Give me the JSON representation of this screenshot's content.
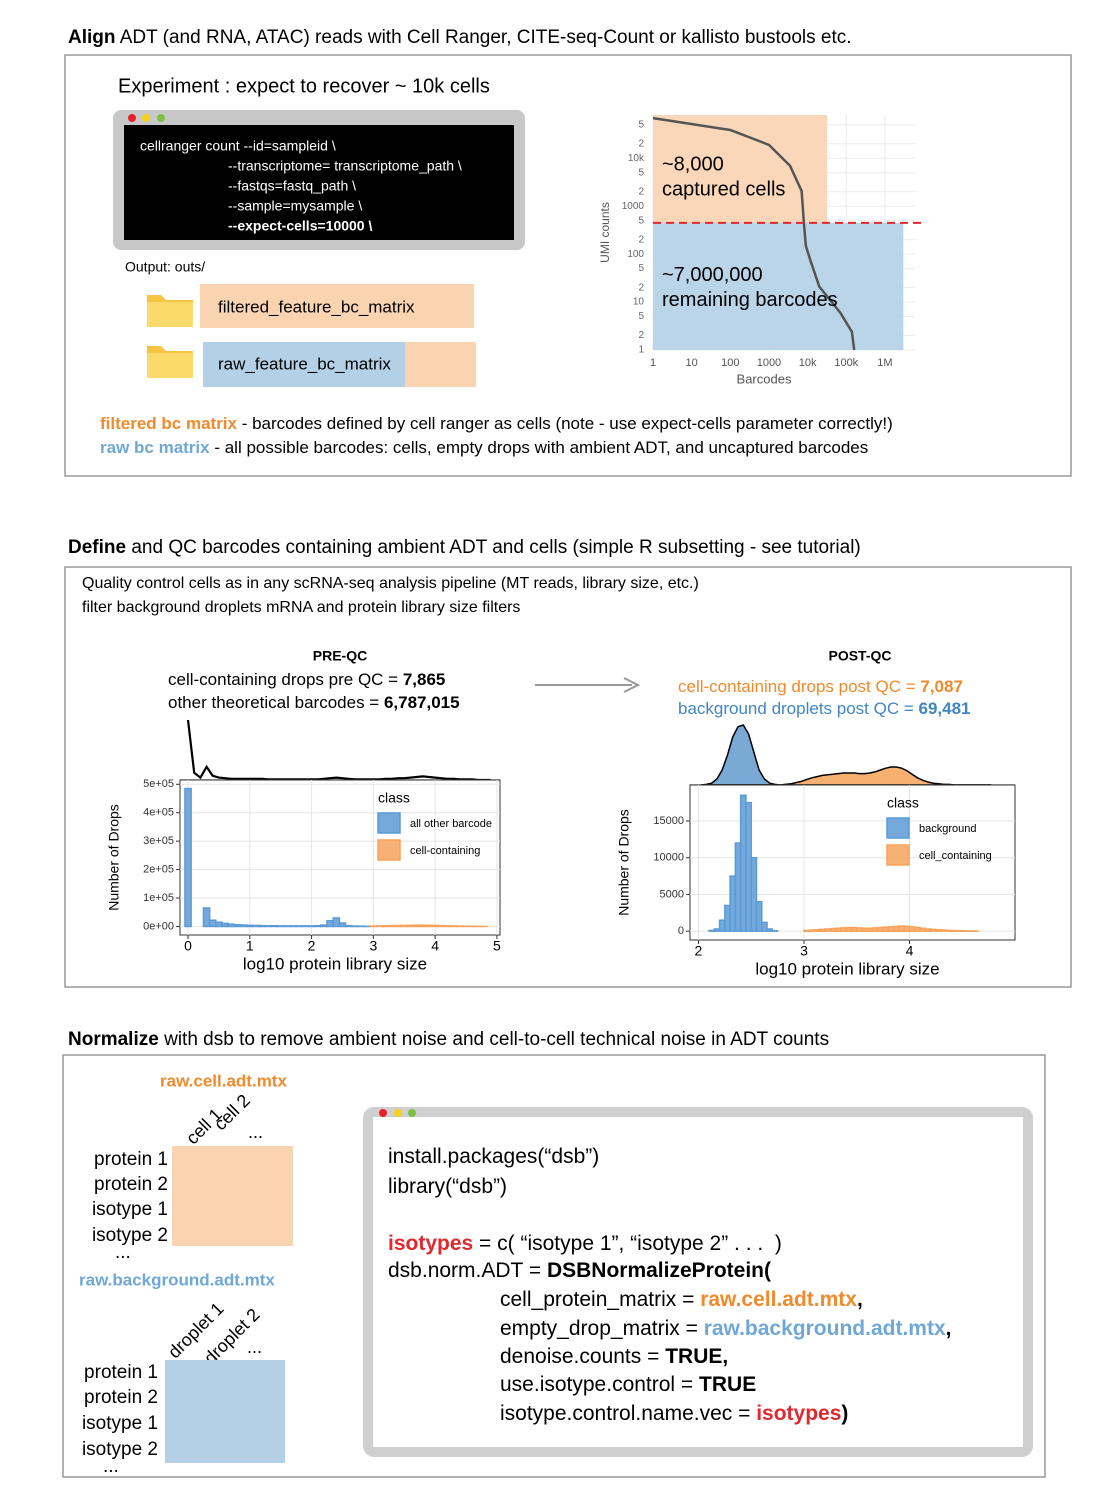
{
  "align": {
    "heading": {
      "bold": "Align",
      "rest": " ADT (and RNA, ATAC) reads with Cell Ranger, CITE-seq-Count or kallisto bustools etc."
    },
    "experiment": "Experiment : expect to recover ~ 10k cells",
    "terminal": [
      "cellranger count --id=sampleid \\",
      "--transcriptome= transcriptome_path \\",
      "--fastqs=fastq_path \\",
      "--sample=mysample \\",
      "--expect-cells=10000 \\"
    ],
    "output_label": "Output: outs/",
    "folders": [
      "filtered_feature_bc_matrix",
      "raw_feature_bc_matrix"
    ],
    "knee_plot": {
      "type": "line",
      "y_label": "UMI counts",
      "x_label": "Barcodes",
      "log_x": true,
      "log_y": true,
      "grid": true,
      "xlim": [
        1,
        6000000
      ],
      "ylim": [
        1,
        80000
      ],
      "xticks": [
        1,
        10,
        100,
        1000,
        {
          "value": 10000,
          "label": "10k"
        },
        {
          "value": 100000,
          "label": "100k"
        },
        {
          "value": 1000000,
          "label": "1M"
        }
      ],
      "yticks": [
        1,
        2,
        5,
        10,
        {
          "value": 20,
          "label": "2"
        },
        {
          "value": 50,
          "label": "5"
        },
        100,
        {
          "value": 200,
          "label": "2"
        },
        {
          "value": 500,
          "label": "5"
        },
        1000,
        {
          "value": 2000,
          "label": "2"
        },
        {
          "value": 5000,
          "label": "5"
        },
        {
          "value": 10000,
          "label": "10k"
        },
        {
          "value": 20000,
          "label": "2"
        },
        {
          "value": 50000,
          "label": "5"
        }
      ],
      "x": [
        1,
        100,
        1000,
        3500,
        7000,
        8000,
        9000,
        12000,
        20000,
        70000,
        140000,
        160000
      ],
      "y": [
        69000,
        39000,
        19000,
        7000,
        2100,
        450,
        150,
        71,
        21,
        6,
        2.4,
        1
      ],
      "color": "#555555",
      "threshold": 450,
      "regions": [
        {
          "x_max": 32000,
          "color": "#fad3b0",
          "count": "~8,000",
          "label": "captured cells"
        },
        {
          "x_max": 3000000,
          "color": "#b3d0e6",
          "count": "~7,000,000",
          "label": "remaining barcodes"
        }
      ]
    },
    "notes": [
      {
        "term": "filtered bc matrix",
        "text": " - barcodes defined by cell ranger as cells (note - use expect-cells parameter correctly!)"
      },
      {
        "term": "raw bc matrix",
        "text": " - all possible barcodes: cells, empty drops with ambient ADT, and uncaptured barcodes"
      }
    ]
  },
  "define": {
    "heading": {
      "bold": "Define",
      "rest": " and QC barcodes containing ambient ADT and cells (simple R subsetting - see tutorial)"
    },
    "lines": [
      "Quality control cells as in any scRNA-seq analysis pipeline (MT reads, library size, etc.)",
      "filter background droplets mRNA and protein library size filters"
    ],
    "pre_qc": {
      "type": "histogram",
      "title": "PRE-QC",
      "stats": [
        {
          "text": "cell-containing drops pre QC = ",
          "value": "7,865"
        },
        {
          "text": "other theoretical barcodes = ",
          "value": "6,787,015"
        }
      ],
      "y_label": "Number of Drops",
      "x_label": "log10 protein library size",
      "legend_title": "class",
      "xlim": [
        -0.13,
        5.05
      ],
      "ylim": [
        -30000,
        515000
      ],
      "xticks": [
        0,
        1,
        2,
        3,
        4,
        5
      ],
      "yticks": [
        {
          "value": 0,
          "label": "0e+00"
        },
        {
          "value": 100000,
          "label": "1e+05"
        },
        {
          "value": 200000,
          "label": "2e+05"
        },
        {
          "value": 300000,
          "label": "3e+05"
        },
        {
          "value": 400000,
          "label": "4e+05"
        },
        {
          "value": 500000,
          "label": "5e+05"
        }
      ],
      "bins": [
        -0.05,
        0.05,
        0.15,
        0.25,
        0.35,
        0.45,
        0.55,
        0.65,
        0.75,
        0.85,
        0.95,
        1.05,
        1.15,
        1.25,
        1.35,
        1.45,
        1.55,
        1.65,
        1.75,
        1.85,
        1.95,
        2.05,
        2.15,
        2.25,
        2.35,
        2.45,
        2.55,
        2.65,
        2.75,
        2.85,
        2.95,
        3.05,
        3.15,
        3.25,
        3.35,
        3.45,
        3.55,
        3.65,
        3.75,
        3.85,
        3.95,
        4.05,
        4.15,
        4.25,
        4.35,
        4.45,
        4.55,
        4.65,
        4.75,
        4.85,
        4.95
      ],
      "series": [
        {
          "name": "all other barcode",
          "color": "#5b9bd5",
          "values": [
            485000,
            0,
            0,
            65000,
            22000,
            15000,
            11000,
            8000,
            6000,
            5000,
            4000,
            3500,
            3000,
            2500,
            2500,
            2000,
            2000,
            2000,
            2000,
            2000,
            2000,
            2500,
            5000,
            20000,
            30000,
            12000,
            3000,
            1500,
            1000,
            500,
            0,
            0,
            0,
            0,
            0,
            0,
            0,
            0,
            0,
            0,
            0,
            0,
            0,
            0,
            0,
            0,
            0,
            0,
            0,
            0
          ]
        },
        {
          "name": "cell-containing",
          "color": "#f7a35c",
          "values": [
            0,
            0,
            0,
            0,
            0,
            0,
            0,
            0,
            0,
            0,
            0,
            0,
            0,
            0,
            0,
            0,
            0,
            0,
            0,
            0,
            0,
            0,
            0,
            0,
            0,
            0,
            0,
            0,
            0,
            0,
            1500,
            2000,
            2500,
            3000,
            3500,
            3500,
            4000,
            4500,
            4500,
            4000,
            3500,
            3000,
            2500,
            2000,
            1500,
            1000,
            700,
            400,
            200,
            0
          ]
        }
      ],
      "density": [
        {
          "color": "#000000",
          "filled": false,
          "values": [
            1.0,
            0.12,
            0.04,
            0.22,
            0.07,
            0.04,
            0.03,
            0.02,
            0.02,
            0.02,
            0.02,
            0.02,
            0.02,
            0.01,
            0.01,
            0.01,
            0.01,
            0.01,
            0.01,
            0.01,
            0.01,
            0.01,
            0.02,
            0.03,
            0.04,
            0.03,
            0.02,
            0.01,
            0.01,
            0.01,
            0.01,
            0.01,
            0.02,
            0.02,
            0.03,
            0.03,
            0.04,
            0.05,
            0.06,
            0.05,
            0.04,
            0.03,
            0.02,
            0.02,
            0.01,
            0.01,
            0.01,
            0,
            0,
            0
          ]
        }
      ]
    },
    "arrow_color": "#999999",
    "post_qc": {
      "type": "histogram",
      "title": "POST-QC",
      "stats": [
        {
          "text": "cell-containing drops post QC = ",
          "value": "7,087"
        },
        {
          "text": "background droplets post QC = ",
          "value": "69,481"
        }
      ],
      "y_label": "Number of Drops",
      "x_label": "log10 protein library size",
      "legend_title": "class",
      "xlim": [
        1.92,
        5.0
      ],
      "ylim": [
        -1200,
        19900
      ],
      "xticks": [
        2,
        3,
        4
      ],
      "yticks": [
        0,
        5000,
        10000,
        15000
      ],
      "bins": [
        2,
        2.05,
        2.1,
        2.15,
        2.2,
        2.25,
        2.3,
        2.35,
        2.4,
        2.45,
        2.5,
        2.55,
        2.6,
        2.65,
        2.7,
        2.75,
        2.8,
        2.85,
        2.9,
        2.95,
        3,
        3.05,
        3.1,
        3.15,
        3.2,
        3.25,
        3.3,
        3.35,
        3.4,
        3.45,
        3.5,
        3.55,
        3.6,
        3.65,
        3.7,
        3.75,
        3.8,
        3.85,
        3.9,
        3.95,
        4,
        4.05,
        4.1,
        4.15,
        4.2,
        4.25,
        4.3,
        4.35,
        4.4,
        4.45,
        4.5,
        4.55,
        4.6,
        4.65,
        4.7,
        4.75,
        4.8
      ],
      "series": [
        {
          "name": "background",
          "color": "#5b9bd5",
          "values": [
            0,
            0,
            100,
            300,
            1500,
            3500,
            7500,
            12000,
            18500,
            17500,
            10000,
            4000,
            1200,
            300,
            50,
            0,
            0,
            0,
            0,
            0,
            0,
            0,
            0,
            0,
            0,
            0,
            0,
            0,
            0,
            0,
            0,
            0,
            0,
            0,
            0,
            0,
            0,
            0,
            0,
            0,
            0,
            0,
            0,
            0,
            0,
            0,
            0,
            0,
            0,
            0,
            0,
            0,
            0,
            0,
            0,
            0
          ]
        },
        {
          "name": "cell_containing",
          "color": "#f7a35c",
          "values": [
            0,
            0,
            0,
            0,
            0,
            0,
            0,
            0,
            0,
            0,
            0,
            0,
            0,
            0,
            0,
            0,
            0,
            0,
            0,
            0,
            100,
            150,
            200,
            250,
            300,
            350,
            400,
            450,
            500,
            500,
            450,
            400,
            400,
            450,
            500,
            550,
            600,
            650,
            700,
            650,
            600,
            500,
            400,
            300,
            250,
            200,
            150,
            100,
            80,
            60,
            40,
            20,
            10,
            0,
            0,
            0
          ]
        }
      ],
      "density": [
        {
          "color": "#7aa9d6",
          "filled": true,
          "values": [
            0,
            0.01,
            0.03,
            0.1,
            0.25,
            0.5,
            0.8,
            0.97,
            1.0,
            0.85,
            0.55,
            0.25,
            0.1,
            0.03,
            0.01,
            0,
            0,
            0,
            0,
            0,
            0,
            0,
            0,
            0,
            0,
            0,
            0,
            0,
            0,
            0,
            0,
            0,
            0,
            0,
            0,
            0,
            0,
            0,
            0,
            0,
            0,
            0,
            0,
            0,
            0,
            0,
            0,
            0,
            0,
            0,
            0,
            0,
            0,
            0,
            0,
            0
          ]
        },
        {
          "color": "#f7b070",
          "filled": true,
          "values": [
            0,
            0,
            0,
            0,
            0,
            0,
            0,
            0,
            0,
            0,
            0,
            0,
            0,
            0,
            0,
            0,
            0.01,
            0.02,
            0.04,
            0.06,
            0.09,
            0.12,
            0.14,
            0.16,
            0.17,
            0.18,
            0.19,
            0.2,
            0.2,
            0.2,
            0.19,
            0.19,
            0.2,
            0.22,
            0.25,
            0.28,
            0.3,
            0.3,
            0.28,
            0.24,
            0.18,
            0.12,
            0.08,
            0.05,
            0.03,
            0.02,
            0.01,
            0.01,
            0,
            0,
            0,
            0,
            0,
            0,
            0,
            0
          ]
        }
      ]
    }
  },
  "normalize": {
    "heading": {
      "bold": "Normalize",
      "rest": " with dsb to remove ambient noise and cell-to-cell technical noise in ADT counts"
    },
    "cell_matrix": {
      "title": "raw.cell.adt.mtx",
      "columns": [
        "cell 1",
        "cell 2",
        "..."
      ],
      "rows": [
        "protein 1",
        "protein 2",
        "isotype 1",
        "isotype 2",
        "..."
      ]
    },
    "background_matrix": {
      "title": "raw.background.adt.mtx",
      "columns": [
        "droplet 1",
        "droplet 2",
        "..."
      ],
      "rows": [
        "protein 1",
        "protein 2",
        "isotype 1",
        "isotype 2",
        "..."
      ]
    },
    "code": [
      [
        "install.packages(“dsb”)"
      ],
      [
        "library(“dsb”)"
      ],
      [
        "isotypes",
        " = c( “isotype 1”, “isotype 2” . . .  )"
      ],
      [
        "dsb.norm.ADT = ",
        "DSBNormalizeProtein("
      ],
      [
        "cell_protein_matrix = ",
        "raw.cell.adt.mtx",
        ","
      ],
      [
        "empty_drop_matrix = ",
        "raw.background.adt.mtx",
        ","
      ],
      [
        "denoise.counts = ",
        "TRUE,"
      ],
      [
        "use.isotype.control = ",
        "TRUE"
      ],
      [
        "isotype.control.name.vec = ",
        "isotypes",
        ")"
      ]
    ]
  }
}
